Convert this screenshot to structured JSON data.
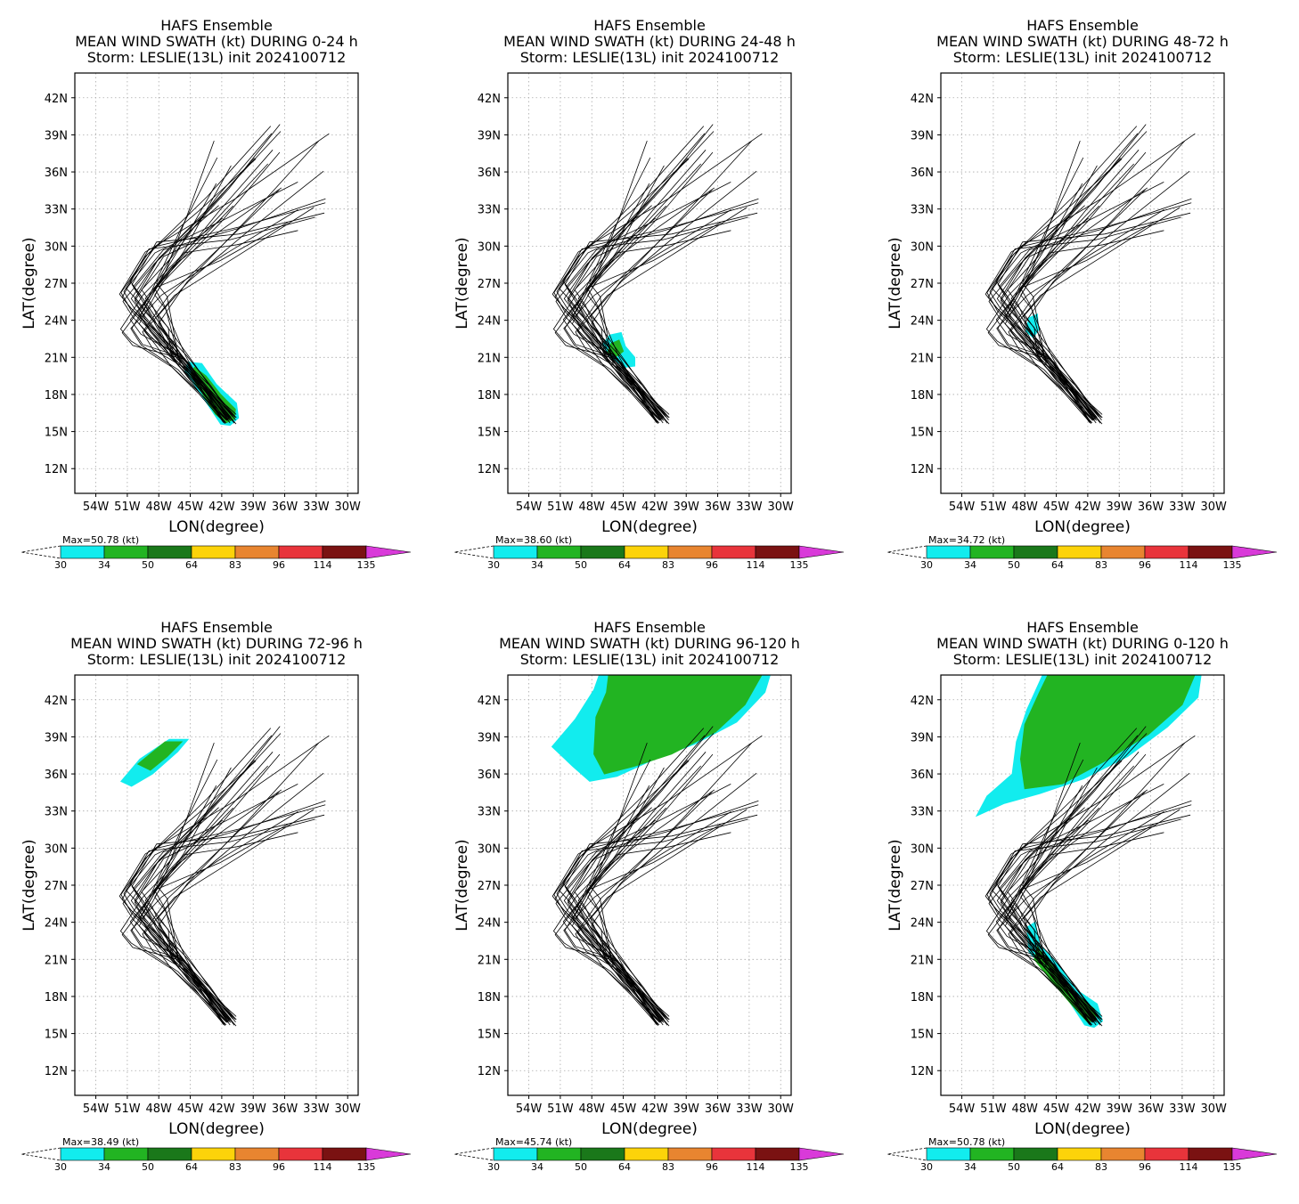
{
  "figure": {
    "ylabel": "LAT(degree)",
    "xlabel": "LON(degree)",
    "x_ticks": [
      "54W",
      "51W",
      "48W",
      "45W",
      "42W",
      "39W",
      "36W",
      "33W",
      "30W"
    ],
    "y_ticks": [
      "12N",
      "15N",
      "18N",
      "21N",
      "24N",
      "27N",
      "30N",
      "33N",
      "36N",
      "39N",
      "42N"
    ],
    "colorbar": {
      "levels": [
        "30",
        "34",
        "50",
        "64",
        "83",
        "96",
        "114",
        "135"
      ],
      "colors": [
        "#12ecee",
        "#22b422",
        "#1a781a",
        "#fcd30a",
        "#e88530",
        "#e8343b",
        "#7a1212",
        "#d93ad9"
      ]
    }
  },
  "chart_data": [
    {
      "type": "line",
      "title": [
        "HAFS Ensemble",
        "MEAN WIND SWATH (kt) DURING  0-24 h",
        "Storm: LESLIE(13L) init 2024100712"
      ],
      "max_label": "Max=50.78 (kt)",
      "xlim_lon": [
        -56,
        -29
      ],
      "ylim_lat": [
        10,
        44
      ],
      "swath": [
        {
          "level": "30",
          "color": "#12ecee",
          "polygon_lonlat": [
            [
              -45.2,
              20.6
            ],
            [
              -43.9,
              20.5
            ],
            [
              -42.5,
              18.8
            ],
            [
              -40.6,
              17.3
            ],
            [
              -40.4,
              16.1
            ],
            [
              -41.2,
              15.5
            ],
            [
              -42.1,
              15.6
            ],
            [
              -43.2,
              17.0
            ],
            [
              -44.6,
              18.8
            ],
            [
              -45.5,
              19.9
            ]
          ]
        },
        {
          "level": "34",
          "color": "#22b422",
          "polygon_lonlat": [
            [
              -44.6,
              20.2
            ],
            [
              -43.5,
              19.5
            ],
            [
              -42.1,
              18.0
            ],
            [
              -40.7,
              16.8
            ],
            [
              -40.8,
              16.0
            ],
            [
              -41.6,
              15.7
            ],
            [
              -42.6,
              16.4
            ],
            [
              -43.8,
              18.0
            ],
            [
              -45.0,
              19.6
            ]
          ]
        }
      ],
      "track_count": 30
    },
    {
      "type": "line",
      "title": [
        "HAFS Ensemble",
        "MEAN WIND SWATH (kt) DURING 24-48 h",
        "Storm: LESLIE(13L) init 2024100712"
      ],
      "max_label": "Max=38.60 (kt)",
      "xlim_lon": [
        -56,
        -29
      ],
      "ylim_lat": [
        10,
        44
      ],
      "swath": [
        {
          "level": "30",
          "color": "#12ecee",
          "polygon_lonlat": [
            [
              -46.3,
              22.8
            ],
            [
              -45.2,
              23.0
            ],
            [
              -44.8,
              21.9
            ],
            [
              -43.9,
              21.0
            ],
            [
              -43.9,
              20.3
            ],
            [
              -44.8,
              20.2
            ],
            [
              -46.2,
              21.0
            ],
            [
              -47.0,
              22.0
            ]
          ]
        },
        {
          "level": "34",
          "color": "#22b422",
          "polygon_lonlat": [
            [
              -46.2,
              22.1
            ],
            [
              -45.4,
              22.4
            ],
            [
              -45.0,
              21.5
            ],
            [
              -45.6,
              21.1
            ],
            [
              -46.5,
              21.4
            ]
          ]
        }
      ],
      "track_count": 30
    },
    {
      "type": "line",
      "title": [
        "HAFS Ensemble",
        "MEAN WIND SWATH (kt) DURING 48-72 h",
        "Storm: LESLIE(13L) init 2024100712"
      ],
      "max_label": "Max=34.72 (kt)",
      "xlim_lon": [
        -56,
        -29
      ],
      "ylim_lat": [
        10,
        44
      ],
      "swath": [
        {
          "level": "30",
          "color": "#12ecee",
          "polygon_lonlat": [
            [
              -47.6,
              24.2
            ],
            [
              -46.8,
              24.5
            ],
            [
              -46.7,
              23.2
            ],
            [
              -47.2,
              22.6
            ],
            [
              -47.9,
              23.1
            ]
          ]
        }
      ],
      "track_count": 30
    },
    {
      "type": "line",
      "title": [
        "HAFS Ensemble",
        "MEAN WIND SWATH (kt) DURING 72-96 h",
        "Storm: LESLIE(13L) init 2024100712"
      ],
      "max_label": "Max=38.49 (kt)",
      "xlim_lon": [
        -56,
        -29
      ],
      "ylim_lat": [
        10,
        44
      ],
      "swath": [
        {
          "level": "30",
          "color": "#12ecee",
          "polygon_lonlat": [
            [
              -51.6,
              35.4
            ],
            [
              -49.8,
              37.2
            ],
            [
              -47.0,
              38.8
            ],
            [
              -45.2,
              38.8
            ],
            [
              -46.2,
              37.8
            ],
            [
              -48.6,
              36.0
            ],
            [
              -50.6,
              35.0
            ]
          ]
        },
        {
          "level": "34",
          "color": "#22b422",
          "polygon_lonlat": [
            [
              -50.0,
              36.8
            ],
            [
              -47.4,
              38.6
            ],
            [
              -45.8,
              38.6
            ],
            [
              -47.2,
              37.4
            ],
            [
              -48.8,
              36.3
            ]
          ]
        }
      ],
      "track_count": 30
    },
    {
      "type": "line",
      "title": [
        "HAFS Ensemble",
        "MEAN WIND SWATH (kt) DURING 96-120 h",
        "Storm: LESLIE(13L) init 2024100712"
      ],
      "max_label": "Max=45.74 (kt)",
      "xlim_lon": [
        -56,
        -29
      ],
      "ylim_lat": [
        10,
        44
      ],
      "swath": [
        {
          "level": "30",
          "color": "#12ecee",
          "polygon_lonlat": [
            [
              -47.3,
              44
            ],
            [
              -31.0,
              44
            ],
            [
              -31.5,
              42.6
            ],
            [
              -34.2,
              40.2
            ],
            [
              -38.2,
              38.4
            ],
            [
              -42.0,
              37.2
            ],
            [
              -45.6,
              35.8
            ],
            [
              -48.2,
              35.4
            ],
            [
              -49.8,
              36.6
            ],
            [
              -51.8,
              38.2
            ],
            [
              -49.6,
              40.4
            ],
            [
              -47.8,
              42.8
            ]
          ]
        },
        {
          "level": "34",
          "color": "#22b422",
          "polygon_lonlat": [
            [
              -46.4,
              44
            ],
            [
              -31.8,
              44
            ],
            [
              -33.4,
              41.6
            ],
            [
              -36.2,
              39.4
            ],
            [
              -40.4,
              37.6
            ],
            [
              -44.0,
              36.6
            ],
            [
              -46.8,
              36.0
            ],
            [
              -47.8,
              37.6
            ],
            [
              -47.6,
              40.6
            ],
            [
              -46.6,
              42.6
            ]
          ]
        }
      ],
      "track_count": 30
    },
    {
      "type": "line",
      "title": [
        "HAFS Ensemble",
        "MEAN WIND SWATH (kt) DURING 0-120 h",
        "Storm: LESLIE(13L) init 2024100712"
      ],
      "max_label": "Max=50.78 (kt)",
      "xlim_lon": [
        -56,
        -29
      ],
      "ylim_lat": [
        10,
        44
      ],
      "swath": [
        {
          "level": "30",
          "color": "#12ecee",
          "polygon_lonlat": [
            [
              -46.3,
              44
            ],
            [
              -31.2,
              44
            ],
            [
              -31.5,
              42.2
            ],
            [
              -34.4,
              39.8
            ],
            [
              -38.2,
              37.4
            ],
            [
              -42.4,
              35.6
            ],
            [
              -46.6,
              34.4
            ],
            [
              -50.0,
              33.6
            ],
            [
              -52.6,
              32.6
            ],
            [
              -51.6,
              34.2
            ],
            [
              -49.2,
              36.0
            ],
            [
              -48.8,
              38.6
            ],
            [
              -47.8,
              41.2
            ]
          ]
        },
        {
          "level": "34",
          "color": "#22b422",
          "polygon_lonlat": [
            [
              -45.8,
              44
            ],
            [
              -31.8,
              44
            ],
            [
              -33.0,
              41.6
            ],
            [
              -36.2,
              39.2
            ],
            [
              -40.0,
              37.2
            ],
            [
              -44.4,
              35.2
            ],
            [
              -48.0,
              34.8
            ],
            [
              -48.4,
              37.2
            ],
            [
              -48.0,
              40.0
            ],
            [
              -46.6,
              42.6
            ]
          ]
        },
        {
          "level": "30",
          "color": "#12ecee",
          "polygon_lonlat": [
            [
              -47.0,
              24.0
            ],
            [
              -46.6,
              22.2
            ],
            [
              -44.8,
              20.6
            ],
            [
              -43.2,
              18.6
            ],
            [
              -41.1,
              17.4
            ],
            [
              -40.6,
              16.0
            ],
            [
              -41.4,
              15.5
            ],
            [
              -42.3,
              15.7
            ],
            [
              -43.6,
              17.4
            ],
            [
              -45.4,
              19.6
            ],
            [
              -47.6,
              21.6
            ],
            [
              -47.8,
              23.6
            ]
          ]
        },
        {
          "level": "34",
          "color": "#22b422",
          "polygon_lonlat": [
            [
              -46.8,
              22.0
            ],
            [
              -45.0,
              20.2
            ],
            [
              -43.2,
              18.2
            ],
            [
              -41.4,
              17.0
            ],
            [
              -41.2,
              16.1
            ],
            [
              -42.0,
              15.9
            ],
            [
              -43.4,
              17.2
            ],
            [
              -45.4,
              19.2
            ],
            [
              -47.1,
              21.0
            ]
          ]
        }
      ],
      "track_count": 30
    }
  ]
}
